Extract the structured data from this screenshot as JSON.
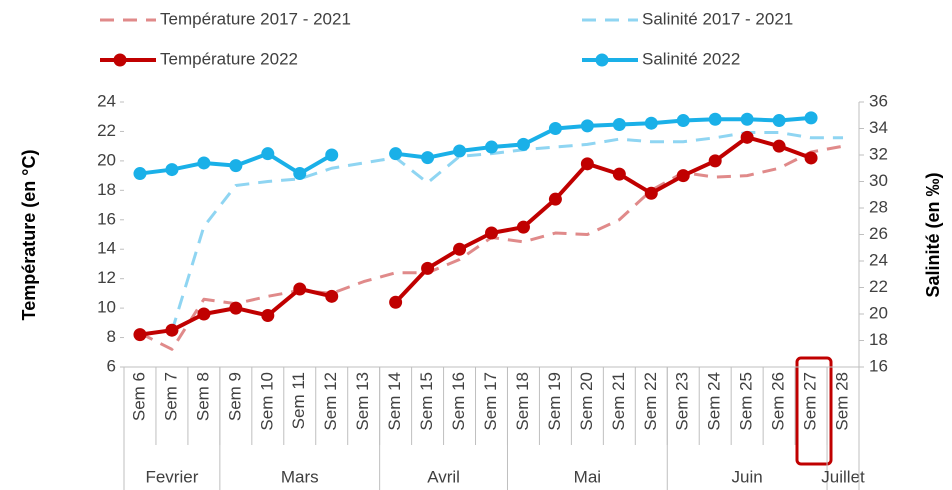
{
  "chart_data": {
    "type": "line",
    "categories": [
      "Sem 6",
      "Sem 7",
      "Sem 8",
      "Sem 9",
      "Sem 10",
      "Sem 11",
      "Sem 12",
      "Sem 13",
      "Sem 14",
      "Sem 15",
      "Sem 16",
      "Sem 17",
      "Sem 18",
      "Sem 19",
      "Sem 20",
      "Sem 21",
      "Sem 22",
      "Sem 23",
      "Sem 24",
      "Sem 25",
      "Sem 26",
      "Sem 27",
      "Sem 28"
    ],
    "groups": [
      {
        "label": "Fevrier",
        "size": 3
      },
      {
        "label": "Mars",
        "size": 5
      },
      {
        "label": "Avril",
        "size": 4
      },
      {
        "label": "Mai",
        "size": 5
      },
      {
        "label": "Juin",
        "size": 5
      },
      {
        "label": "Juillet",
        "size": 1
      }
    ],
    "ylabel": "Température  (en °C)",
    "y2label": "Salinité (en ‰)",
    "ylim": [
      6,
      24
    ],
    "yticks": [
      6,
      8,
      10,
      12,
      14,
      16,
      18,
      20,
      22,
      24
    ],
    "y2lim": [
      16,
      36
    ],
    "y2ticks": [
      16,
      18,
      20,
      22,
      24,
      26,
      28,
      30,
      32,
      34,
      36
    ],
    "series": [
      {
        "name": "Température 2017 - 2021",
        "color": "#e08a8a",
        "dashed": true,
        "markers": false,
        "values": [
          8.3,
          7.2,
          10.6,
          10.3,
          10.8,
          11.2,
          11.0,
          11.8,
          12.4,
          12.4,
          13.3,
          14.8,
          14.5,
          15.1,
          15.0,
          16.0,
          18.0,
          19.2,
          18.9,
          19.0,
          19.5,
          20.6,
          21.0
        ]
      },
      {
        "name": "Salinité 2017 - 2021",
        "color": "#8fd5f2",
        "dashed": true,
        "markers": false,
        "axis": "y2",
        "values": [
          null,
          18.7,
          26.6,
          29.7,
          30.0,
          30.2,
          31.0,
          31.4,
          31.8,
          29.9,
          31.9,
          32.1,
          32.4,
          32.6,
          32.8,
          33.2,
          33.0,
          33.0,
          33.3,
          33.7,
          33.7,
          33.3,
          33.3
        ]
      },
      {
        "name": "Température 2022",
        "color": "#c00000",
        "dashed": false,
        "markers": true,
        "values": [
          8.2,
          8.5,
          9.6,
          10.0,
          9.5,
          11.3,
          10.8,
          null,
          10.4,
          12.7,
          14.0,
          15.1,
          15.5,
          17.4,
          19.8,
          19.1,
          17.8,
          19.0,
          20.0,
          21.6,
          21.0,
          20.2,
          null
        ]
      },
      {
        "name": "Salinité 2022",
        "color": "#1ab0e8",
        "dashed": false,
        "markers": true,
        "axis": "y2",
        "values": [
          30.6,
          30.9,
          31.4,
          31.2,
          32.1,
          30.6,
          32.0,
          null,
          32.1,
          31.8,
          32.3,
          32.6,
          32.8,
          34.0,
          34.2,
          34.3,
          34.4,
          34.6,
          34.7,
          34.7,
          34.6,
          34.8,
          null
        ]
      }
    ]
  }
}
